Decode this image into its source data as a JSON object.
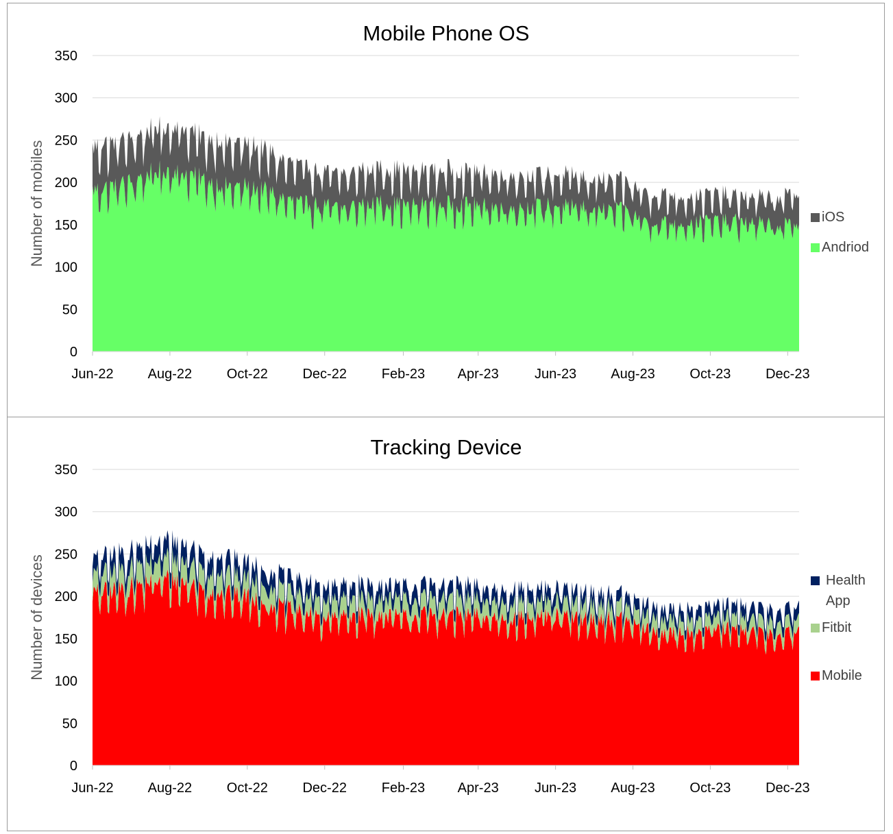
{
  "colors": {
    "ios": "#595959",
    "android": "#66ff66",
    "health_app": "#002060",
    "fitbit": "#a9d18e",
    "mobile": "#ff0000",
    "grid": "#d9d9d9"
  },
  "chart_data": [
    {
      "type": "area",
      "stacked": true,
      "title": "Mobile Phone OS",
      "ylabel": "Number of mobiles",
      "xlabel": "",
      "x_range": [
        "2022-06-01",
        "2023-12-10"
      ],
      "ylim": [
        0,
        350
      ],
      "yticks": [
        "0",
        "50",
        "100",
        "150",
        "200",
        "250",
        "300",
        "350"
      ],
      "xticks": [
        "Jun-22",
        "Aug-22",
        "Oct-22",
        "Dec-22",
        "Feb-23",
        "Apr-23",
        "Jun-23",
        "Aug-23",
        "Oct-23",
        "Dec-23"
      ],
      "grid": true,
      "legend_position": "right",
      "frequency": "daily",
      "legend": [
        "iOS",
        "Andriod"
      ],
      "series": [
        {
          "name": "Andriod",
          "color_key": "android",
          "trend": [
            [
              "2022-06-01",
              185
            ],
            [
              "2022-06-15",
              190
            ],
            [
              "2022-07-01",
              195
            ],
            [
              "2022-07-15",
              205
            ],
            [
              "2022-08-01",
              210
            ],
            [
              "2022-08-15",
              205
            ],
            [
              "2022-09-01",
              195
            ],
            [
              "2022-09-15",
              190
            ],
            [
              "2022-10-01",
              190
            ],
            [
              "2022-10-15",
              185
            ],
            [
              "2022-11-01",
              175
            ],
            [
              "2022-11-15",
              170
            ],
            [
              "2022-12-01",
              168
            ],
            [
              "2022-12-15",
              165
            ],
            [
              "2023-01-01",
              170
            ],
            [
              "2023-01-15",
              172
            ],
            [
              "2023-02-01",
              168
            ],
            [
              "2023-03-01",
              170
            ],
            [
              "2023-04-01",
              168
            ],
            [
              "2023-05-01",
              166
            ],
            [
              "2023-06-01",
              168
            ],
            [
              "2023-07-01",
              165
            ],
            [
              "2023-07-25",
              162
            ],
            [
              "2023-08-15",
              150
            ],
            [
              "2023-09-01",
              148
            ],
            [
              "2023-10-01",
              150
            ],
            [
              "2023-11-01",
              150
            ],
            [
              "2023-11-25",
              145
            ],
            [
              "2023-12-10",
              148
            ]
          ]
        },
        {
          "name": "iOS",
          "color_key": "ios",
          "trend": [
            [
              "2022-06-01",
              50
            ],
            [
              "2022-07-01",
              50
            ],
            [
              "2022-08-01",
              52
            ],
            [
              "2022-09-01",
              50
            ],
            [
              "2022-10-01",
              50
            ],
            [
              "2022-11-01",
              45
            ],
            [
              "2022-12-01",
              40
            ],
            [
              "2023-01-01",
              40
            ],
            [
              "2023-03-01",
              40
            ],
            [
              "2023-05-01",
              38
            ],
            [
              "2023-07-01",
              35
            ],
            [
              "2023-09-01",
              32
            ],
            [
              "2023-11-01",
              30
            ],
            [
              "2023-12-10",
              35
            ]
          ]
        }
      ]
    },
    {
      "type": "area",
      "stacked": true,
      "title": "Tracking Device",
      "ylabel": "Number of devices",
      "xlabel": "",
      "x_range": [
        "2022-06-01",
        "2023-12-10"
      ],
      "ylim": [
        0,
        350
      ],
      "yticks": [
        "0",
        "50",
        "100",
        "150",
        "200",
        "250",
        "300",
        "350"
      ],
      "xticks": [
        "Jun-22",
        "Aug-22",
        "Oct-22",
        "Dec-22",
        "Feb-23",
        "Apr-23",
        "Jun-23",
        "Aug-23",
        "Oct-23",
        "Dec-23"
      ],
      "grid": true,
      "legend_position": "right",
      "frequency": "daily",
      "legend": [
        "Health App",
        "Fitbit",
        "Mobile"
      ],
      "series": [
        {
          "name": "Mobile",
          "color_key": "mobile",
          "trend": [
            [
              "2022-06-01",
              198
            ],
            [
              "2022-07-01",
              205
            ],
            [
              "2022-07-15",
              212
            ],
            [
              "2022-08-01",
              215
            ],
            [
              "2022-08-15",
              210
            ],
            [
              "2022-09-01",
              200
            ],
            [
              "2022-10-01",
              195
            ],
            [
              "2022-11-01",
              180
            ],
            [
              "2022-12-01",
              170
            ],
            [
              "2023-01-01",
              175
            ],
            [
              "2023-02-01",
              172
            ],
            [
              "2023-03-01",
              175
            ],
            [
              "2023-04-01",
              172
            ],
            [
              "2023-05-01",
              170
            ],
            [
              "2023-06-01",
              172
            ],
            [
              "2023-07-01",
              168
            ],
            [
              "2023-07-25",
              168
            ],
            [
              "2023-08-15",
              155
            ],
            [
              "2023-09-01",
              152
            ],
            [
              "2023-10-01",
              158
            ],
            [
              "2023-11-01",
              155
            ],
            [
              "2023-11-25",
              150
            ],
            [
              "2023-12-10",
              155
            ]
          ]
        },
        {
          "name": "Fitbit",
          "color_key": "fitbit",
          "trend": [
            [
              "2022-06-01",
              22
            ],
            [
              "2022-08-01",
              25
            ],
            [
              "2022-10-01",
              22
            ],
            [
              "2022-12-01",
              20
            ],
            [
              "2023-03-01",
              20
            ],
            [
              "2023-06-01",
              18
            ],
            [
              "2023-09-01",
              16
            ],
            [
              "2023-12-10",
              15
            ]
          ]
        },
        {
          "name": "Health App",
          "color_key": "health_app",
          "trend": [
            [
              "2022-06-01",
              18
            ],
            [
              "2022-08-01",
              20
            ],
            [
              "2022-10-01",
              18
            ],
            [
              "2022-12-01",
              16
            ],
            [
              "2023-03-01",
              15
            ],
            [
              "2023-06-01",
              14
            ],
            [
              "2023-09-01",
              12
            ],
            [
              "2023-12-10",
              14
            ]
          ]
        }
      ]
    }
  ]
}
